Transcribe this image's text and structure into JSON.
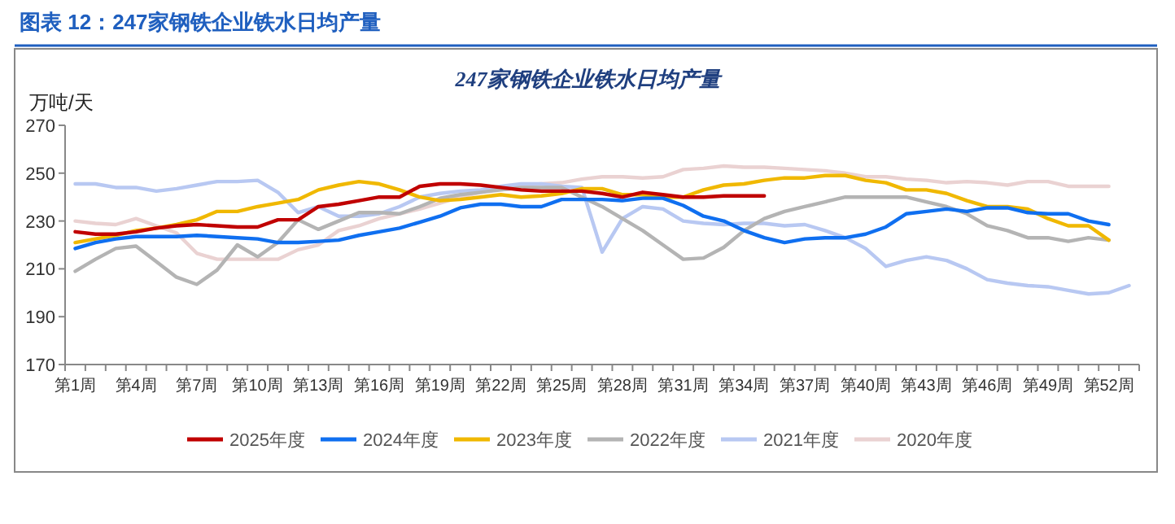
{
  "chart_data": {
    "type": "line",
    "title": "图表 12：247家钢铁企业铁水日均产量",
    "subtitle": "247家钢铁企业铁水日均产量",
    "ylabel": "万吨/天",
    "categories": [
      "第1周",
      null,
      null,
      "第4周",
      null,
      null,
      "第7周",
      null,
      null,
      "第10周",
      null,
      null,
      "第13周",
      null,
      null,
      "第16周",
      null,
      null,
      "第19周",
      null,
      null,
      "第22周",
      null,
      null,
      "第25周",
      null,
      null,
      "第28周",
      null,
      null,
      "第31周",
      null,
      null,
      "第34周",
      null,
      null,
      "第37周",
      null,
      null,
      "第40周",
      null,
      null,
      "第43周",
      null,
      null,
      "第46周",
      null,
      null,
      "第49周",
      null,
      null,
      "第52周",
      null
    ],
    "ylim": [
      170,
      270
    ],
    "yticks": [
      170,
      190,
      210,
      230,
      250,
      270
    ],
    "grid": false,
    "legend": "bottom",
    "series": [
      {
        "name": "2025年度",
        "color": "#c00000",
        "values": [
          225.5,
          224.5,
          224.5,
          225.5,
          227,
          228,
          228.5,
          228,
          227.5,
          227.5,
          230.5,
          230.5,
          236,
          237,
          238.5,
          240,
          240,
          244.5,
          245.5,
          245.5,
          245,
          244,
          243,
          242.5,
          242.5,
          242.5,
          241.5,
          240,
          242,
          241,
          240,
          240,
          240.5,
          240.5,
          240.5,
          null,
          null,
          null,
          null,
          null,
          null,
          null,
          null,
          null,
          null,
          null,
          null,
          null,
          null,
          null,
          null,
          null,
          null
        ]
      },
      {
        "name": "2024年度",
        "color": "#0f6ff0",
        "values": [
          218.5,
          221,
          222.5,
          223.5,
          223.5,
          223.5,
          224,
          223.5,
          223,
          222.5,
          221,
          221,
          221.5,
          222,
          224,
          225.5,
          227,
          229.5,
          232,
          235.5,
          237,
          237,
          236,
          236,
          239,
          239,
          239,
          238.5,
          239.5,
          239.5,
          236.5,
          232,
          230,
          226,
          223,
          221,
          222.5,
          223,
          223,
          224.5,
          227.5,
          233,
          234,
          235,
          234,
          235.5,
          235.5,
          233.5,
          233,
          233,
          230,
          228.5,
          null
        ]
      },
      {
        "name": "2023年度",
        "color": "#f0b800",
        "values": [
          221,
          222.5,
          224,
          226,
          227,
          228.5,
          230.5,
          234,
          234,
          236,
          237.5,
          239,
          243,
          245,
          246.5,
          245.5,
          243,
          240,
          238.5,
          239,
          240,
          241,
          240,
          240.5,
          241.5,
          243.5,
          243.5,
          241,
          241,
          240,
          240,
          243,
          245,
          245.5,
          247,
          248,
          248,
          249,
          249,
          247,
          246,
          243,
          243,
          241.5,
          238.5,
          236,
          236,
          235,
          231,
          228,
          228,
          222,
          null
        ]
      },
      {
        "name": "2022年度",
        "color": "#b4b4b4",
        "values": [
          209,
          214,
          218.5,
          219.5,
          213,
          206.5,
          203.5,
          209.5,
          220,
          215,
          221,
          230.5,
          226.5,
          230,
          233.5,
          233.5,
          233,
          236,
          239.5,
          241,
          242,
          243,
          244,
          244,
          244,
          240,
          236,
          231,
          226,
          220,
          214,
          214.5,
          219,
          226,
          231,
          234,
          236,
          238,
          240,
          240,
          240,
          240,
          238,
          236,
          233,
          228,
          226,
          223,
          223,
          221.5,
          223,
          222,
          null
        ]
      },
      {
        "name": "2021年度",
        "color": "#b8c8f2",
        "values": [
          245.5,
          245.5,
          244,
          244,
          242.5,
          243.5,
          245,
          246.5,
          246.5,
          247,
          242,
          233.5,
          236,
          232,
          232,
          233,
          236,
          240,
          241.5,
          242.5,
          243,
          244.5,
          245.5,
          245.5,
          244.5,
          244,
          217,
          231,
          236,
          235,
          230,
          229,
          228.5,
          229,
          229,
          228,
          228.5,
          226,
          223,
          218.5,
          211,
          213.5,
          215,
          213.5,
          210,
          205.5,
          204,
          203,
          202.5,
          201,
          199.5,
          200,
          203
        ]
      },
      {
        "name": "2020年度",
        "color": "#ead2d2",
        "values": [
          230,
          229,
          228.5,
          231,
          228,
          225,
          216.5,
          214,
          214,
          214,
          214,
          218,
          220,
          226,
          228,
          231,
          233,
          235,
          237.5,
          240,
          242,
          244,
          245,
          245.5,
          246,
          247.5,
          248.5,
          248.5,
          248,
          248.5,
          251.5,
          252,
          253,
          252.5,
          252.5,
          252,
          251.5,
          251,
          250,
          248.5,
          248.5,
          247.5,
          247,
          246,
          246.5,
          246,
          245,
          246.5,
          246.5,
          244.5,
          244.5,
          244.5,
          null
        ]
      }
    ]
  }
}
